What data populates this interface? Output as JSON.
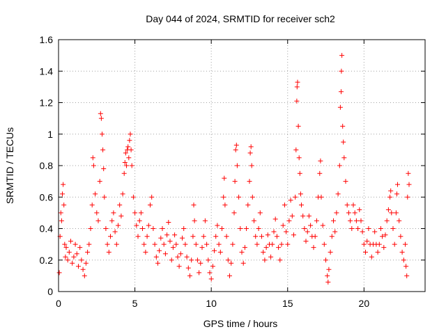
{
  "chart_data": {
    "type": "scatter",
    "title": "Day 044 of 2024, SRMTID for receiver sch2",
    "xlabel": "GPS time / hours",
    "ylabel": "SRMTID / TECUs",
    "xlim": [
      0,
      24
    ],
    "ylim": [
      0,
      1.6
    ],
    "xticks": [
      0,
      5,
      10,
      15,
      20
    ],
    "xtick_labels": [
      "0",
      "5",
      "10",
      "15",
      "20"
    ],
    "yticks": [
      0,
      0.2,
      0.4,
      0.6,
      0.8,
      1,
      1.2,
      1.4,
      1.6
    ],
    "ytick_labels": [
      "0",
      "0.2",
      "0.4",
      "0.6",
      "0.8",
      "1",
      "1.2",
      "1.4",
      "1.6"
    ],
    "grid": true,
    "marker": "+",
    "color": "#ff0000",
    "series": [
      {
        "name": "SRMTID",
        "points": [
          [
            0.05,
            0.12
          ],
          [
            0.1,
            0.35
          ],
          [
            0.15,
            0.5
          ],
          [
            0.2,
            0.45
          ],
          [
            0.25,
            0.62
          ],
          [
            0.3,
            0.68
          ],
          [
            0.35,
            0.55
          ],
          [
            0.4,
            0.3
          ],
          [
            0.45,
            0.22
          ],
          [
            0.5,
            0.28
          ],
          [
            0.6,
            0.2
          ],
          [
            0.7,
            0.25
          ],
          [
            0.8,
            0.32
          ],
          [
            0.9,
            0.18
          ],
          [
            1.0,
            0.22
          ],
          [
            1.1,
            0.3
          ],
          [
            1.2,
            0.24
          ],
          [
            1.3,
            0.16
          ],
          [
            1.4,
            0.28
          ],
          [
            1.5,
            0.2
          ],
          [
            1.6,
            0.14
          ],
          [
            1.7,
            0.1
          ],
          [
            1.8,
            0.18
          ],
          [
            1.9,
            0.25
          ],
          [
            2.0,
            0.3
          ],
          [
            2.1,
            0.4
          ],
          [
            2.2,
            0.55
          ],
          [
            2.25,
            0.85
          ],
          [
            2.3,
            0.8
          ],
          [
            2.4,
            0.62
          ],
          [
            2.5,
            0.5
          ],
          [
            2.6,
            0.45
          ],
          [
            2.7,
            0.7
          ],
          [
            2.75,
            1.13
          ],
          [
            2.8,
            1.1
          ],
          [
            2.85,
            1.0
          ],
          [
            2.9,
            0.9
          ],
          [
            2.95,
            0.78
          ],
          [
            3.0,
            0.6
          ],
          [
            3.1,
            0.4
          ],
          [
            3.2,
            0.3
          ],
          [
            3.3,
            0.25
          ],
          [
            3.4,
            0.35
          ],
          [
            3.5,
            0.45
          ],
          [
            3.6,
            0.5
          ],
          [
            3.7,
            0.38
          ],
          [
            3.8,
            0.3
          ],
          [
            3.9,
            0.42
          ],
          [
            4.0,
            0.55
          ],
          [
            4.1,
            0.48
          ],
          [
            4.2,
            0.62
          ],
          [
            4.3,
            0.75
          ],
          [
            4.35,
            0.82
          ],
          [
            4.4,
            0.88
          ],
          [
            4.45,
            0.8
          ],
          [
            4.5,
            0.9
          ],
          [
            4.55,
            0.92
          ],
          [
            4.6,
            0.85
          ],
          [
            4.65,
            0.96
          ],
          [
            4.7,
            1.0
          ],
          [
            4.75,
            0.9
          ],
          [
            4.8,
            0.8
          ],
          [
            4.9,
            0.6
          ],
          [
            5.0,
            0.5
          ],
          [
            5.1,
            0.42
          ],
          [
            5.2,
            0.35
          ],
          [
            5.3,
            0.45
          ],
          [
            5.4,
            0.5
          ],
          [
            5.5,
            0.4
          ],
          [
            5.6,
            0.3
          ],
          [
            5.7,
            0.25
          ],
          [
            5.8,
            0.35
          ],
          [
            5.9,
            0.42
          ],
          [
            6.0,
            0.55
          ],
          [
            6.1,
            0.6
          ],
          [
            6.2,
            0.4
          ],
          [
            6.3,
            0.3
          ],
          [
            6.4,
            0.22
          ],
          [
            6.5,
            0.18
          ],
          [
            6.6,
            0.26
          ],
          [
            6.7,
            0.34
          ],
          [
            6.8,
            0.4
          ],
          [
            6.9,
            0.3
          ],
          [
            7.0,
            0.24
          ],
          [
            7.1,
            0.36
          ],
          [
            7.2,
            0.44
          ],
          [
            7.3,
            0.32
          ],
          [
            7.4,
            0.2
          ],
          [
            7.5,
            0.28
          ],
          [
            7.6,
            0.36
          ],
          [
            7.7,
            0.3
          ],
          [
            7.8,
            0.22
          ],
          [
            7.9,
            0.16
          ],
          [
            8.0,
            0.24
          ],
          [
            8.1,
            0.34
          ],
          [
            8.2,
            0.4
          ],
          [
            8.3,
            0.3
          ],
          [
            8.4,
            0.22
          ],
          [
            8.5,
            0.15
          ],
          [
            8.6,
            0.1
          ],
          [
            8.7,
            0.2
          ],
          [
            8.8,
            0.35
          ],
          [
            8.85,
            0.55
          ],
          [
            8.9,
            0.45
          ],
          [
            9.0,
            0.3
          ],
          [
            9.1,
            0.2
          ],
          [
            9.2,
            0.12
          ],
          [
            9.3,
            0.18
          ],
          [
            9.4,
            0.28
          ],
          [
            9.5,
            0.35
          ],
          [
            9.6,
            0.45
          ],
          [
            9.7,
            0.3
          ],
          [
            9.8,
            0.2
          ],
          [
            9.9,
            0.12
          ],
          [
            10.0,
            0.08
          ],
          [
            10.1,
            0.16
          ],
          [
            10.2,
            0.26
          ],
          [
            10.3,
            0.35
          ],
          [
            10.4,
            0.42
          ],
          [
            10.5,
            0.3
          ],
          [
            10.6,
            0.25
          ],
          [
            10.7,
            0.4
          ],
          [
            10.8,
            0.6
          ],
          [
            10.85,
            0.72
          ],
          [
            10.9,
            0.55
          ],
          [
            11.0,
            0.35
          ],
          [
            11.1,
            0.2
          ],
          [
            11.2,
            0.1
          ],
          [
            11.3,
            0.18
          ],
          [
            11.4,
            0.3
          ],
          [
            11.5,
            0.5
          ],
          [
            11.55,
            0.7
          ],
          [
            11.6,
            0.9
          ],
          [
            11.65,
            0.93
          ],
          [
            11.7,
            0.8
          ],
          [
            11.8,
            0.6
          ],
          [
            11.9,
            0.4
          ],
          [
            12.0,
            0.25
          ],
          [
            12.1,
            0.18
          ],
          [
            12.2,
            0.28
          ],
          [
            12.3,
            0.4
          ],
          [
            12.4,
            0.55
          ],
          [
            12.5,
            0.7
          ],
          [
            12.55,
            0.88
          ],
          [
            12.6,
            0.92
          ],
          [
            12.65,
            0.8
          ],
          [
            12.7,
            0.6
          ],
          [
            12.8,
            0.45
          ],
          [
            12.9,
            0.35
          ],
          [
            13.0,
            0.3
          ],
          [
            13.1,
            0.4
          ],
          [
            13.2,
            0.5
          ],
          [
            13.3,
            0.35
          ],
          [
            13.4,
            0.25
          ],
          [
            13.5,
            0.2
          ],
          [
            13.6,
            0.28
          ],
          [
            13.7,
            0.36
          ],
          [
            13.8,
            0.3
          ],
          [
            13.9,
            0.22
          ],
          [
            14.0,
            0.3
          ],
          [
            14.1,
            0.38
          ],
          [
            14.2,
            0.46
          ],
          [
            14.3,
            0.35
          ],
          [
            14.4,
            0.28
          ],
          [
            14.5,
            0.2
          ],
          [
            14.6,
            0.3
          ],
          [
            14.7,
            0.42
          ],
          [
            14.8,
            0.55
          ],
          [
            14.9,
            0.38
          ],
          [
            15.0,
            0.3
          ],
          [
            15.1,
            0.45
          ],
          [
            15.2,
            0.58
          ],
          [
            15.3,
            0.48
          ],
          [
            15.4,
            0.36
          ],
          [
            15.5,
            0.6
          ],
          [
            15.55,
            0.9
          ],
          [
            15.6,
            1.21
          ],
          [
            15.62,
            1.3
          ],
          [
            15.65,
            1.33
          ],
          [
            15.7,
            1.05
          ],
          [
            15.75,
            0.85
          ],
          [
            15.8,
            0.75
          ],
          [
            15.85,
            0.62
          ],
          [
            15.9,
            0.55
          ],
          [
            16.0,
            0.48
          ],
          [
            16.1,
            0.4
          ],
          [
            16.2,
            0.32
          ],
          [
            16.3,
            0.38
          ],
          [
            16.4,
            0.48
          ],
          [
            16.5,
            0.42
          ],
          [
            16.6,
            0.35
          ],
          [
            16.7,
            0.28
          ],
          [
            16.8,
            0.35
          ],
          [
            16.9,
            0.45
          ],
          [
            17.0,
            0.6
          ],
          [
            17.1,
            0.75
          ],
          [
            17.15,
            0.83
          ],
          [
            17.2,
            0.6
          ],
          [
            17.3,
            0.42
          ],
          [
            17.4,
            0.3
          ],
          [
            17.5,
            0.2
          ],
          [
            17.6,
            0.1
          ],
          [
            17.65,
            0.06
          ],
          [
            17.7,
            0.14
          ],
          [
            17.8,
            0.25
          ],
          [
            17.9,
            0.35
          ],
          [
            18.0,
            0.45
          ],
          [
            18.1,
            0.38
          ],
          [
            18.2,
            0.5
          ],
          [
            18.3,
            0.62
          ],
          [
            18.4,
            0.8
          ],
          [
            18.45,
            1.17
          ],
          [
            18.5,
            1.27
          ],
          [
            18.52,
            1.4
          ],
          [
            18.55,
            1.5
          ],
          [
            18.6,
            1.05
          ],
          [
            18.65,
            0.95
          ],
          [
            18.7,
            0.85
          ],
          [
            18.8,
            0.7
          ],
          [
            18.9,
            0.55
          ],
          [
            19.0,
            0.5
          ],
          [
            19.1,
            0.45
          ],
          [
            19.2,
            0.4
          ],
          [
            19.3,
            0.55
          ],
          [
            19.4,
            0.5
          ],
          [
            19.5,
            0.45
          ],
          [
            19.6,
            0.4
          ],
          [
            19.7,
            0.52
          ],
          [
            19.8,
            0.45
          ],
          [
            19.9,
            0.38
          ],
          [
            20.0,
            0.3
          ],
          [
            20.1,
            0.25
          ],
          [
            20.2,
            0.32
          ],
          [
            20.3,
            0.4
          ],
          [
            20.4,
            0.3
          ],
          [
            20.5,
            0.22
          ],
          [
            20.6,
            0.3
          ],
          [
            20.7,
            0.38
          ],
          [
            20.8,
            0.3
          ],
          [
            20.9,
            0.25
          ],
          [
            21.0,
            0.3
          ],
          [
            21.1,
            0.4
          ],
          [
            21.2,
            0.35
          ],
          [
            21.3,
            0.28
          ],
          [
            21.4,
            0.36
          ],
          [
            21.5,
            0.45
          ],
          [
            21.6,
            0.52
          ],
          [
            21.7,
            0.6
          ],
          [
            21.75,
            0.64
          ],
          [
            21.8,
            0.5
          ],
          [
            21.9,
            0.4
          ],
          [
            22.0,
            0.3
          ],
          [
            22.1,
            0.5
          ],
          [
            22.15,
            0.62
          ],
          [
            22.2,
            0.68
          ],
          [
            22.3,
            0.45
          ],
          [
            22.4,
            0.35
          ],
          [
            22.5,
            0.25
          ],
          [
            22.6,
            0.2
          ],
          [
            22.7,
            0.3
          ],
          [
            22.75,
            0.16
          ],
          [
            22.8,
            0.1
          ],
          [
            22.85,
            0.6
          ],
          [
            22.9,
            0.75
          ],
          [
            22.95,
            0.68
          ]
        ]
      }
    ]
  }
}
